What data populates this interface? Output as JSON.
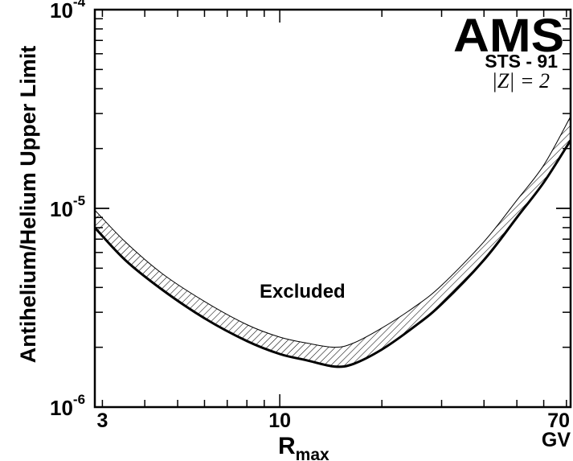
{
  "chart_data": {
    "type": "line",
    "ylabel": "Antihelium/Helium Upper Limit",
    "xlabel_main": "R",
    "xlabel_sub": "max",
    "x_unit": "GV",
    "x_scale": "log",
    "y_scale": "log",
    "xlim": [
      2.85,
      72
    ],
    "ylim": [
      1e-06,
      0.0001
    ],
    "x_ticks": [
      {
        "value": 3,
        "label": "3"
      },
      {
        "value": 10,
        "label": "10"
      },
      {
        "value": 70,
        "label": "70"
      }
    ],
    "y_ticks": [
      {
        "value": 1e-06,
        "base": "10",
        "exp": "-6"
      },
      {
        "value": 1e-05,
        "base": "10",
        "exp": "-5"
      },
      {
        "value": 0.0001,
        "base": "10",
        "exp": "-4"
      }
    ],
    "annotations": {
      "logo": "AMS",
      "mission": "STS - 91",
      "charge": "|Z| = 2",
      "region": "Excluded"
    },
    "series": [
      {
        "role": "limit",
        "x": [
          2.85,
          3.5,
          4.5,
          6,
          8,
          10,
          12,
          14.5,
          16.5,
          20,
          25,
          30,
          40,
          50,
          60,
          72
        ],
        "y": [
          8e-06,
          5.5e-06,
          3.9e-06,
          2.8e-06,
          2.15e-06,
          1.85e-06,
          1.72e-06,
          1.6e-06,
          1.65e-06,
          1.95e-06,
          2.55e-06,
          3.3e-06,
          5.5e-06,
          9e-06,
          1.35e-05,
          2.2e-05
        ]
      },
      {
        "role": "band-upper",
        "x": [
          2.85,
          3.5,
          4.5,
          6,
          8,
          10,
          12,
          14.5,
          16.5,
          20,
          25,
          30,
          40,
          50,
          60,
          72
        ],
        "y": [
          9.8e-06,
          6.8e-06,
          4.7e-06,
          3.4e-06,
          2.6e-06,
          2.25e-06,
          2.1e-06,
          2e-06,
          2.1e-06,
          2.5e-06,
          3.2e-06,
          4.1e-06,
          6.8e-06,
          1.1e-05,
          1.65e-05,
          2.9e-05
        ]
      }
    ],
    "colors": {
      "line": "#000000",
      "hatch": "#000000",
      "background": "#ffffff"
    }
  }
}
